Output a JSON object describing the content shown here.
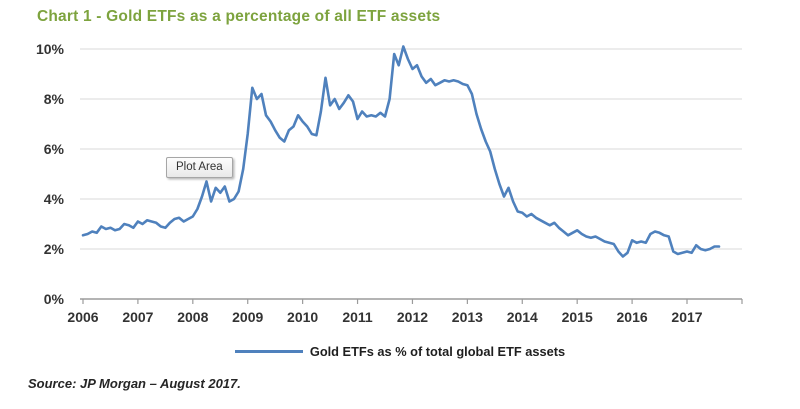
{
  "title": "Chart 1 - Gold ETFs as a percentage of all ETF assets",
  "title_color": "#7da33e",
  "plot_area_label": "Plot Area",
  "legend": {
    "label": "Gold ETFs as % of total global ETF assets",
    "line_color": "#4f81bd"
  },
  "source": "Source: JP Morgan – August 2017.",
  "chart_data": {
    "type": "line",
    "title": "Chart 1 - Gold ETFs as a percentage of all ETF assets",
    "xlabel": "",
    "ylabel": "",
    "x_tick_labels": [
      "2006",
      "2007",
      "2008",
      "2009",
      "2010",
      "2011",
      "2012",
      "2013",
      "2014",
      "2015",
      "2016",
      "2017"
    ],
    "y_tick_labels": [
      "0%",
      "2%",
      "4%",
      "6%",
      "8%",
      "10%"
    ],
    "ylim": [
      0,
      10
    ],
    "grid": "horizontal",
    "legend_position": "bottom",
    "annotations": [
      {
        "text": "Plot Area"
      }
    ],
    "x_unit": "monthly, Jan 2006 through Aug 2017",
    "series": [
      {
        "name": "Gold ETFs as % of total global ETF assets",
        "color": "#4f81bd",
        "values": [
          2.55,
          2.6,
          2.7,
          2.65,
          2.9,
          2.8,
          2.85,
          2.75,
          2.8,
          3.0,
          2.95,
          2.85,
          3.1,
          3.0,
          3.15,
          3.1,
          3.05,
          2.9,
          2.85,
          3.05,
          3.2,
          3.25,
          3.1,
          3.2,
          3.3,
          3.6,
          4.1,
          4.7,
          3.9,
          4.45,
          4.25,
          4.5,
          3.9,
          4.0,
          4.3,
          5.2,
          6.6,
          8.45,
          8.0,
          8.2,
          7.35,
          7.1,
          6.75,
          6.45,
          6.3,
          6.75,
          6.9,
          7.35,
          7.1,
          6.9,
          6.6,
          6.55,
          7.5,
          8.85,
          7.75,
          8.0,
          7.6,
          7.85,
          8.15,
          7.9,
          7.2,
          7.5,
          7.3,
          7.35,
          7.3,
          7.45,
          7.3,
          8.0,
          9.8,
          9.35,
          10.1,
          9.6,
          9.2,
          9.35,
          8.9,
          8.65,
          8.8,
          8.55,
          8.65,
          8.75,
          8.7,
          8.75,
          8.7,
          8.6,
          8.55,
          8.2,
          7.4,
          6.8,
          6.3,
          5.9,
          5.2,
          4.6,
          4.1,
          4.45,
          3.9,
          3.5,
          3.45,
          3.3,
          3.4,
          3.25,
          3.15,
          3.05,
          2.95,
          3.05,
          2.85,
          2.7,
          2.55,
          2.65,
          2.75,
          2.6,
          2.5,
          2.45,
          2.5,
          2.4,
          2.3,
          2.25,
          2.2,
          1.9,
          1.7,
          1.85,
          2.35,
          2.25,
          2.3,
          2.25,
          2.6,
          2.7,
          2.65,
          2.55,
          2.5,
          1.9,
          1.8,
          1.85,
          1.9,
          1.85,
          2.15,
          2.0,
          1.95,
          2.0,
          2.1,
          2.1
        ]
      }
    ]
  }
}
